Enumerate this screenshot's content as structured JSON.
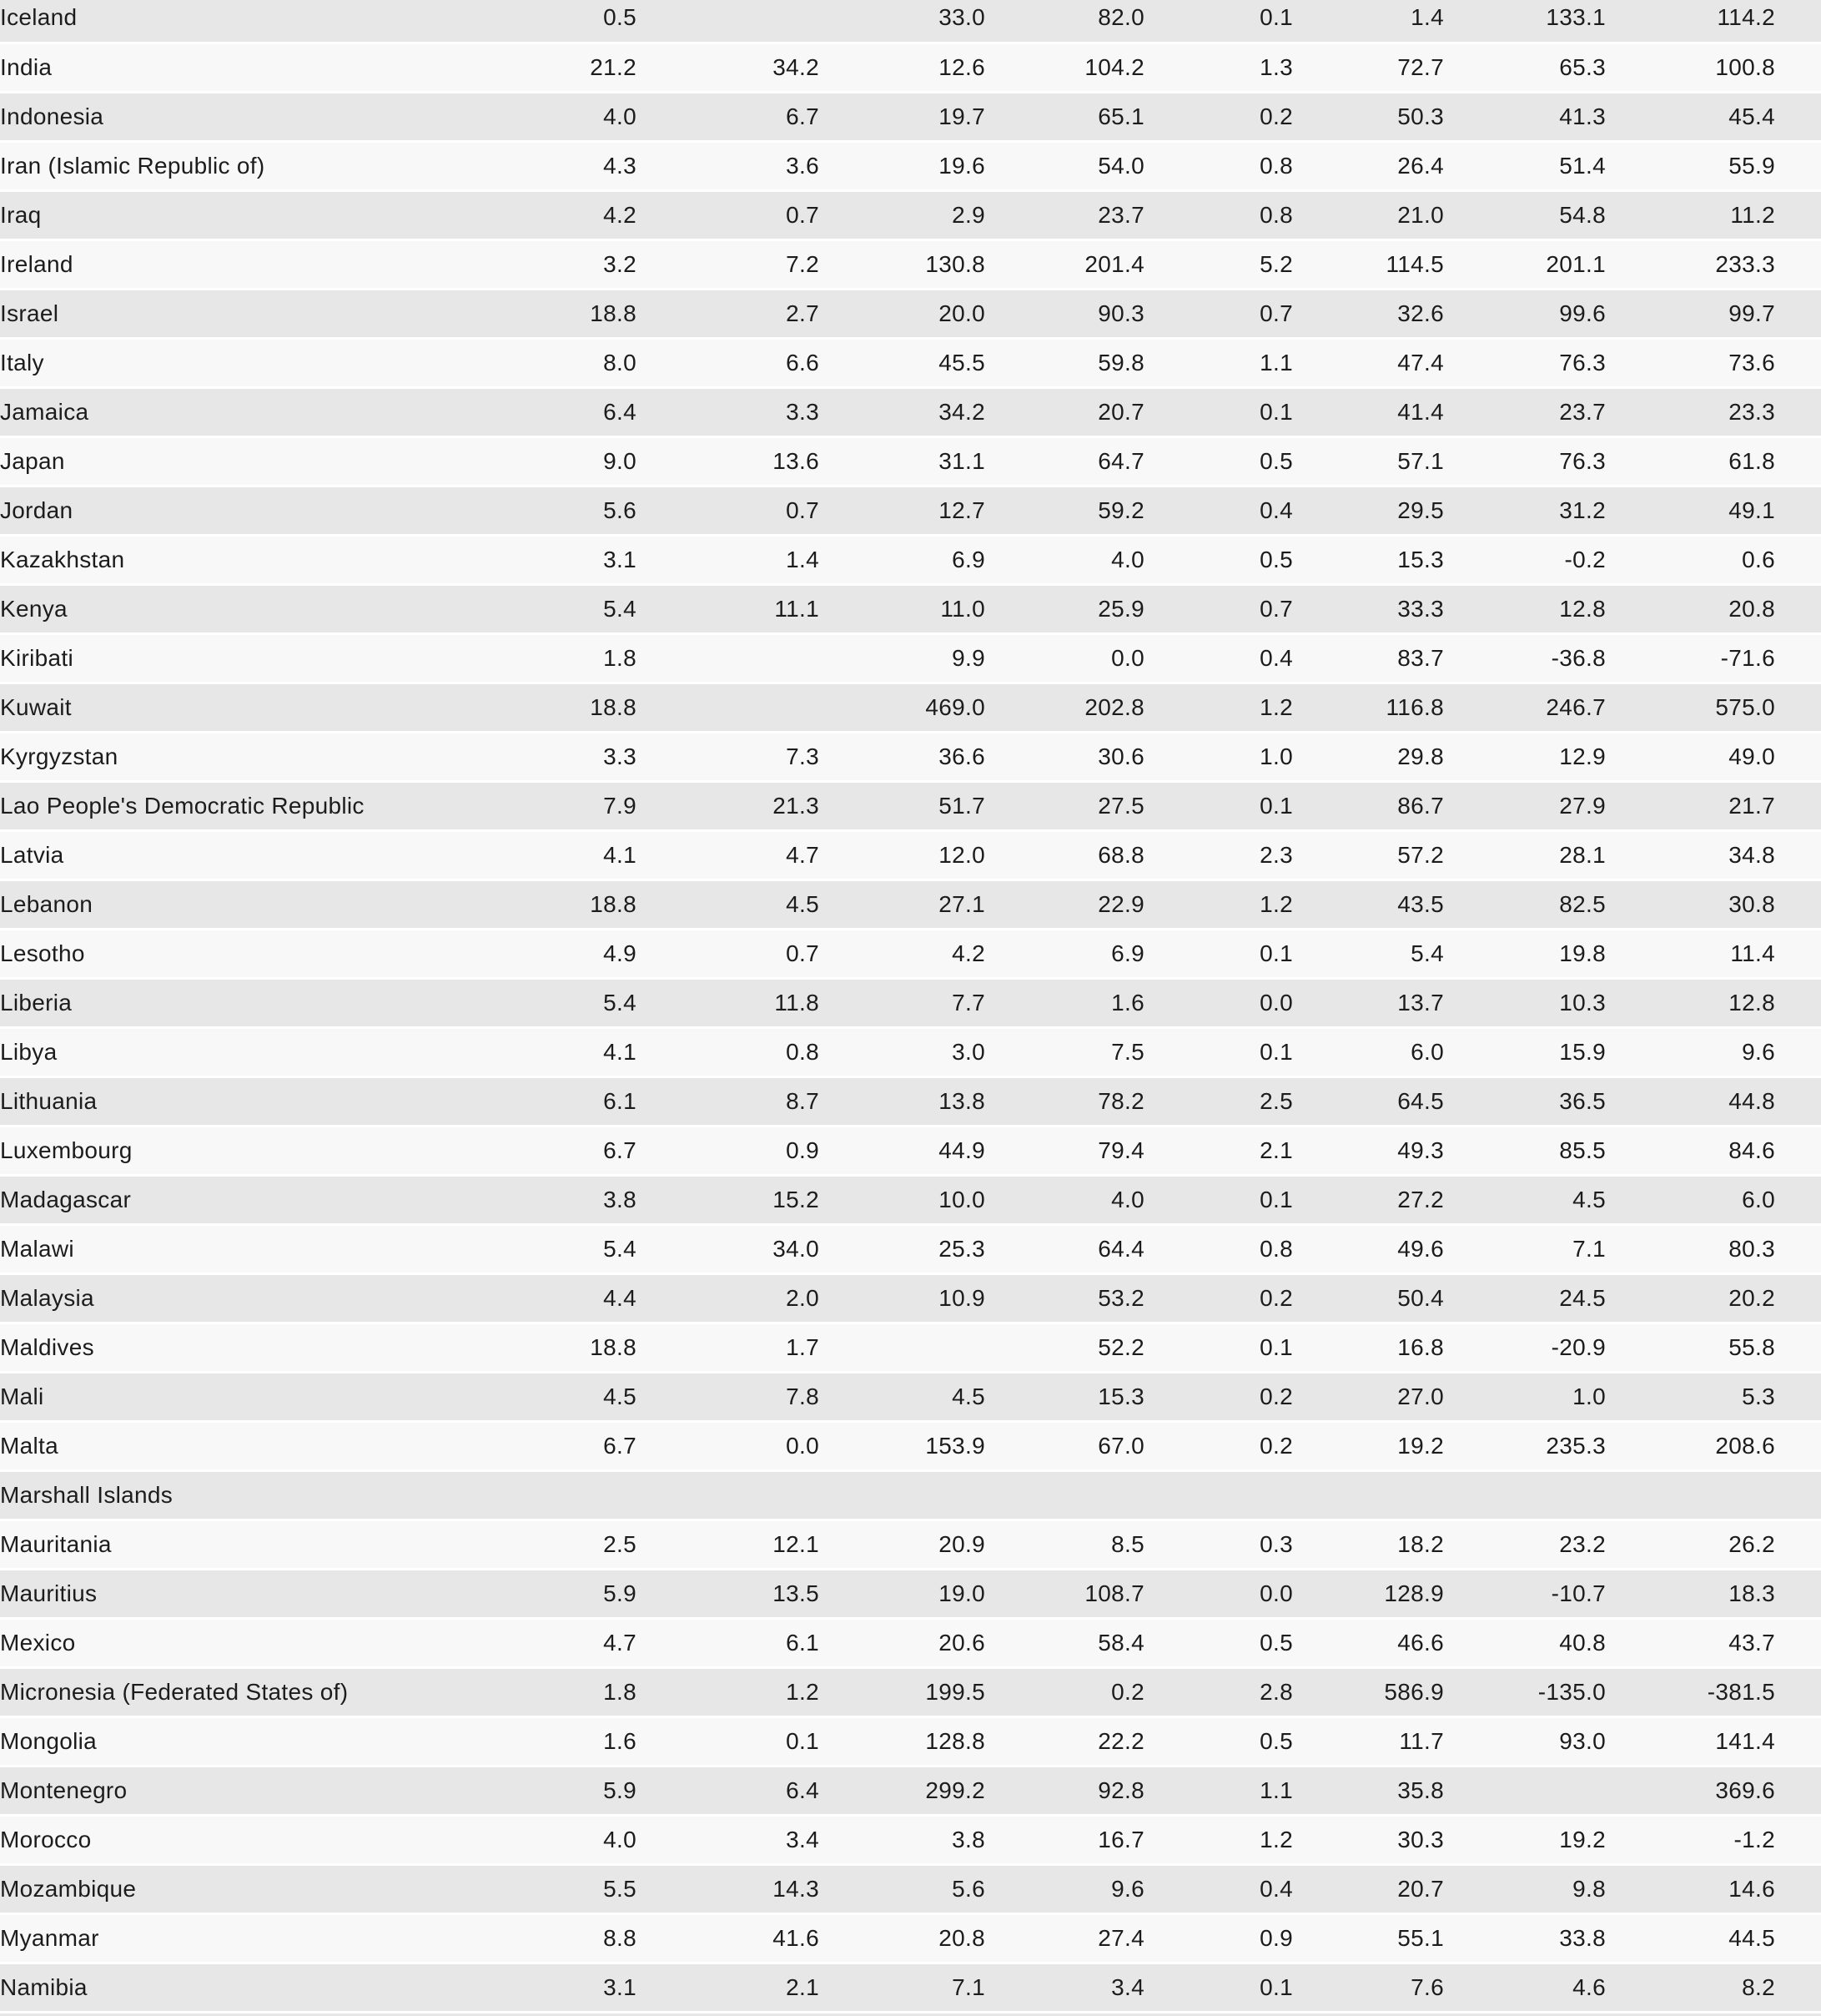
{
  "table": {
    "rows": [
      {
        "country": "Iceland",
        "values": [
          "0.5",
          "",
          "33.0",
          "82.0",
          "0.1",
          "1.4",
          "133.1",
          "114.2"
        ]
      },
      {
        "country": "India",
        "values": [
          "21.2",
          "34.2",
          "12.6",
          "104.2",
          "1.3",
          "72.7",
          "65.3",
          "100.8"
        ]
      },
      {
        "country": "Indonesia",
        "values": [
          "4.0",
          "6.7",
          "19.7",
          "65.1",
          "0.2",
          "50.3",
          "41.3",
          "45.4"
        ]
      },
      {
        "country": "Iran (Islamic Republic of)",
        "values": [
          "4.3",
          "3.6",
          "19.6",
          "54.0",
          "0.8",
          "26.4",
          "51.4",
          "55.9"
        ]
      },
      {
        "country": "Iraq",
        "values": [
          "4.2",
          "0.7",
          "2.9",
          "23.7",
          "0.8",
          "21.0",
          "54.8",
          "11.2"
        ]
      },
      {
        "country": "Ireland",
        "values": [
          "3.2",
          "7.2",
          "130.8",
          "201.4",
          "5.2",
          "114.5",
          "201.1",
          "233.3"
        ]
      },
      {
        "country": "Israel",
        "values": [
          "18.8",
          "2.7",
          "20.0",
          "90.3",
          "0.7",
          "32.6",
          "99.6",
          "99.7"
        ]
      },
      {
        "country": "Italy",
        "values": [
          "8.0",
          "6.6",
          "45.5",
          "59.8",
          "1.1",
          "47.4",
          "76.3",
          "73.6"
        ]
      },
      {
        "country": "Jamaica",
        "values": [
          "6.4",
          "3.3",
          "34.2",
          "20.7",
          "0.1",
          "41.4",
          "23.7",
          "23.3"
        ]
      },
      {
        "country": "Japan",
        "values": [
          "9.0",
          "13.6",
          "31.1",
          "64.7",
          "0.5",
          "57.1",
          "76.3",
          "61.8"
        ]
      },
      {
        "country": "Jordan",
        "values": [
          "5.6",
          "0.7",
          "12.7",
          "59.2",
          "0.4",
          "29.5",
          "31.2",
          "49.1"
        ]
      },
      {
        "country": "Kazakhstan",
        "values": [
          "3.1",
          "1.4",
          "6.9",
          "4.0",
          "0.5",
          "15.3",
          "-0.2",
          "0.6"
        ]
      },
      {
        "country": "Kenya",
        "values": [
          "5.4",
          "11.1",
          "11.0",
          "25.9",
          "0.7",
          "33.3",
          "12.8",
          "20.8"
        ]
      },
      {
        "country": "Kiribati",
        "values": [
          "1.8",
          "",
          "9.9",
          "0.0",
          "0.4",
          "83.7",
          "-36.8",
          "-71.6"
        ]
      },
      {
        "country": "Kuwait",
        "values": [
          "18.8",
          "",
          "469.0",
          "202.8",
          "1.2",
          "116.8",
          "246.7",
          "575.0"
        ]
      },
      {
        "country": "Kyrgyzstan",
        "values": [
          "3.3",
          "7.3",
          "36.6",
          "30.6",
          "1.0",
          "29.8",
          "12.9",
          "49.0"
        ]
      },
      {
        "country": "Lao People's Democratic Republic",
        "values": [
          "7.9",
          "21.3",
          "51.7",
          "27.5",
          "0.1",
          "86.7",
          "27.9",
          "21.7"
        ]
      },
      {
        "country": "Latvia",
        "values": [
          "4.1",
          "4.7",
          "12.0",
          "68.8",
          "2.3",
          "57.2",
          "28.1",
          "34.8"
        ]
      },
      {
        "country": "Lebanon",
        "values": [
          "18.8",
          "4.5",
          "27.1",
          "22.9",
          "1.2",
          "43.5",
          "82.5",
          "30.8"
        ]
      },
      {
        "country": "Lesotho",
        "values": [
          "4.9",
          "0.7",
          "4.2",
          "6.9",
          "0.1",
          "5.4",
          "19.8",
          "11.4"
        ]
      },
      {
        "country": "Liberia",
        "values": [
          "5.4",
          "11.8",
          "7.7",
          "1.6",
          "0.0",
          "13.7",
          "10.3",
          "12.8"
        ]
      },
      {
        "country": "Libya",
        "values": [
          "4.1",
          "0.8",
          "3.0",
          "7.5",
          "0.1",
          "6.0",
          "15.9",
          "9.6"
        ]
      },
      {
        "country": "Lithuania",
        "values": [
          "6.1",
          "8.7",
          "13.8",
          "78.2",
          "2.5",
          "64.5",
          "36.5",
          "44.8"
        ]
      },
      {
        "country": "Luxembourg",
        "values": [
          "6.7",
          "0.9",
          "44.9",
          "79.4",
          "2.1",
          "49.3",
          "85.5",
          "84.6"
        ]
      },
      {
        "country": "Madagascar",
        "values": [
          "3.8",
          "15.2",
          "10.0",
          "4.0",
          "0.1",
          "27.2",
          "4.5",
          "6.0"
        ]
      },
      {
        "country": "Malawi",
        "values": [
          "5.4",
          "34.0",
          "25.3",
          "64.4",
          "0.8",
          "49.6",
          "7.1",
          "80.3"
        ]
      },
      {
        "country": "Malaysia",
        "values": [
          "4.4",
          "2.0",
          "10.9",
          "53.2",
          "0.2",
          "50.4",
          "24.5",
          "20.2"
        ]
      },
      {
        "country": "Maldives",
        "values": [
          "18.8",
          "1.7",
          "",
          "52.2",
          "0.1",
          "16.8",
          "-20.9",
          "55.8"
        ]
      },
      {
        "country": "Mali",
        "values": [
          "4.5",
          "7.8",
          "4.5",
          "15.3",
          "0.2",
          "27.0",
          "1.0",
          "5.3"
        ]
      },
      {
        "country": "Malta",
        "values": [
          "6.7",
          "0.0",
          "153.9",
          "67.0",
          "0.2",
          "19.2",
          "235.3",
          "208.6"
        ]
      },
      {
        "country": "Marshall Islands",
        "values": [
          "",
          "",
          "",
          "",
          "",
          "",
          "",
          ""
        ]
      },
      {
        "country": "Mauritania",
        "values": [
          "2.5",
          "12.1",
          "20.9",
          "8.5",
          "0.3",
          "18.2",
          "23.2",
          "26.2"
        ]
      },
      {
        "country": "Mauritius",
        "values": [
          "5.9",
          "13.5",
          "19.0",
          "108.7",
          "0.0",
          "128.9",
          "-10.7",
          "18.3"
        ]
      },
      {
        "country": "Mexico",
        "values": [
          "4.7",
          "6.1",
          "20.6",
          "58.4",
          "0.5",
          "46.6",
          "40.8",
          "43.7"
        ]
      },
      {
        "country": "Micronesia (Federated States of)",
        "values": [
          "1.8",
          "1.2",
          "199.5",
          "0.2",
          "2.8",
          "586.9",
          "-135.0",
          "-381.5"
        ]
      },
      {
        "country": "Mongolia",
        "values": [
          "1.6",
          "0.1",
          "128.8",
          "22.2",
          "0.5",
          "11.7",
          "93.0",
          "141.4"
        ]
      },
      {
        "country": "Montenegro",
        "values": [
          "5.9",
          "6.4",
          "299.2",
          "92.8",
          "1.1",
          "35.8",
          "",
          "369.6"
        ]
      },
      {
        "country": "Morocco",
        "values": [
          "4.0",
          "3.4",
          "3.8",
          "16.7",
          "1.2",
          "30.3",
          "19.2",
          "-1.2"
        ]
      },
      {
        "country": "Mozambique",
        "values": [
          "5.5",
          "14.3",
          "5.6",
          "9.6",
          "0.4",
          "20.7",
          "9.8",
          "14.6"
        ]
      },
      {
        "country": "Myanmar",
        "values": [
          "8.8",
          "41.6",
          "20.8",
          "27.4",
          "0.9",
          "55.1",
          "33.8",
          "44.5"
        ]
      },
      {
        "country": "Namibia",
        "values": [
          "3.1",
          "2.1",
          "7.1",
          "3.4",
          "0.1",
          "7.6",
          "4.6",
          "8.2"
        ]
      }
    ],
    "styles": {
      "stripe_gray": "#e7e7e7",
      "stripe_light": "#f8f8f8",
      "separator": "#ffffff",
      "text_color": "#1c1c1c"
    }
  }
}
